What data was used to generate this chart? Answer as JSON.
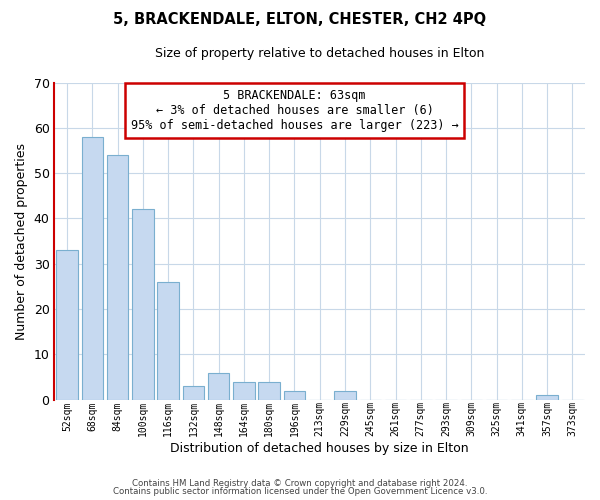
{
  "title": "5, BRACKENDALE, ELTON, CHESTER, CH2 4PQ",
  "subtitle": "Size of property relative to detached houses in Elton",
  "xlabel": "Distribution of detached houses by size in Elton",
  "ylabel": "Number of detached properties",
  "bar_labels": [
    "52sqm",
    "68sqm",
    "84sqm",
    "100sqm",
    "116sqm",
    "132sqm",
    "148sqm",
    "164sqm",
    "180sqm",
    "196sqm",
    "213sqm",
    "229sqm",
    "245sqm",
    "261sqm",
    "277sqm",
    "293sqm",
    "309sqm",
    "325sqm",
    "341sqm",
    "357sqm",
    "373sqm"
  ],
  "bar_values": [
    33,
    58,
    54,
    42,
    26,
    3,
    6,
    4,
    4,
    2,
    0,
    2,
    0,
    0,
    0,
    0,
    0,
    0,
    0,
    1,
    0
  ],
  "bar_color": "#c6d9f0",
  "bar_edge_color": "#7aafcf",
  "property_label": "5 BRACKENDALE: 63sqm",
  "annotation_line1": "← 3% of detached houses are smaller (6)",
  "annotation_line2": "95% of semi-detached houses are larger (223) →",
  "annotation_box_color": "#ffffff",
  "annotation_border_color": "#cc0000",
  "vline_color": "#cc0000",
  "ylim": [
    0,
    70
  ],
  "yticks": [
    0,
    10,
    20,
    30,
    40,
    50,
    60,
    70
  ],
  "footnote1": "Contains HM Land Registry data © Crown copyright and database right 2024.",
  "footnote2": "Contains public sector information licensed under the Open Government Licence v3.0.",
  "bg_color": "#ffffff",
  "grid_color": "#c8d8e8"
}
